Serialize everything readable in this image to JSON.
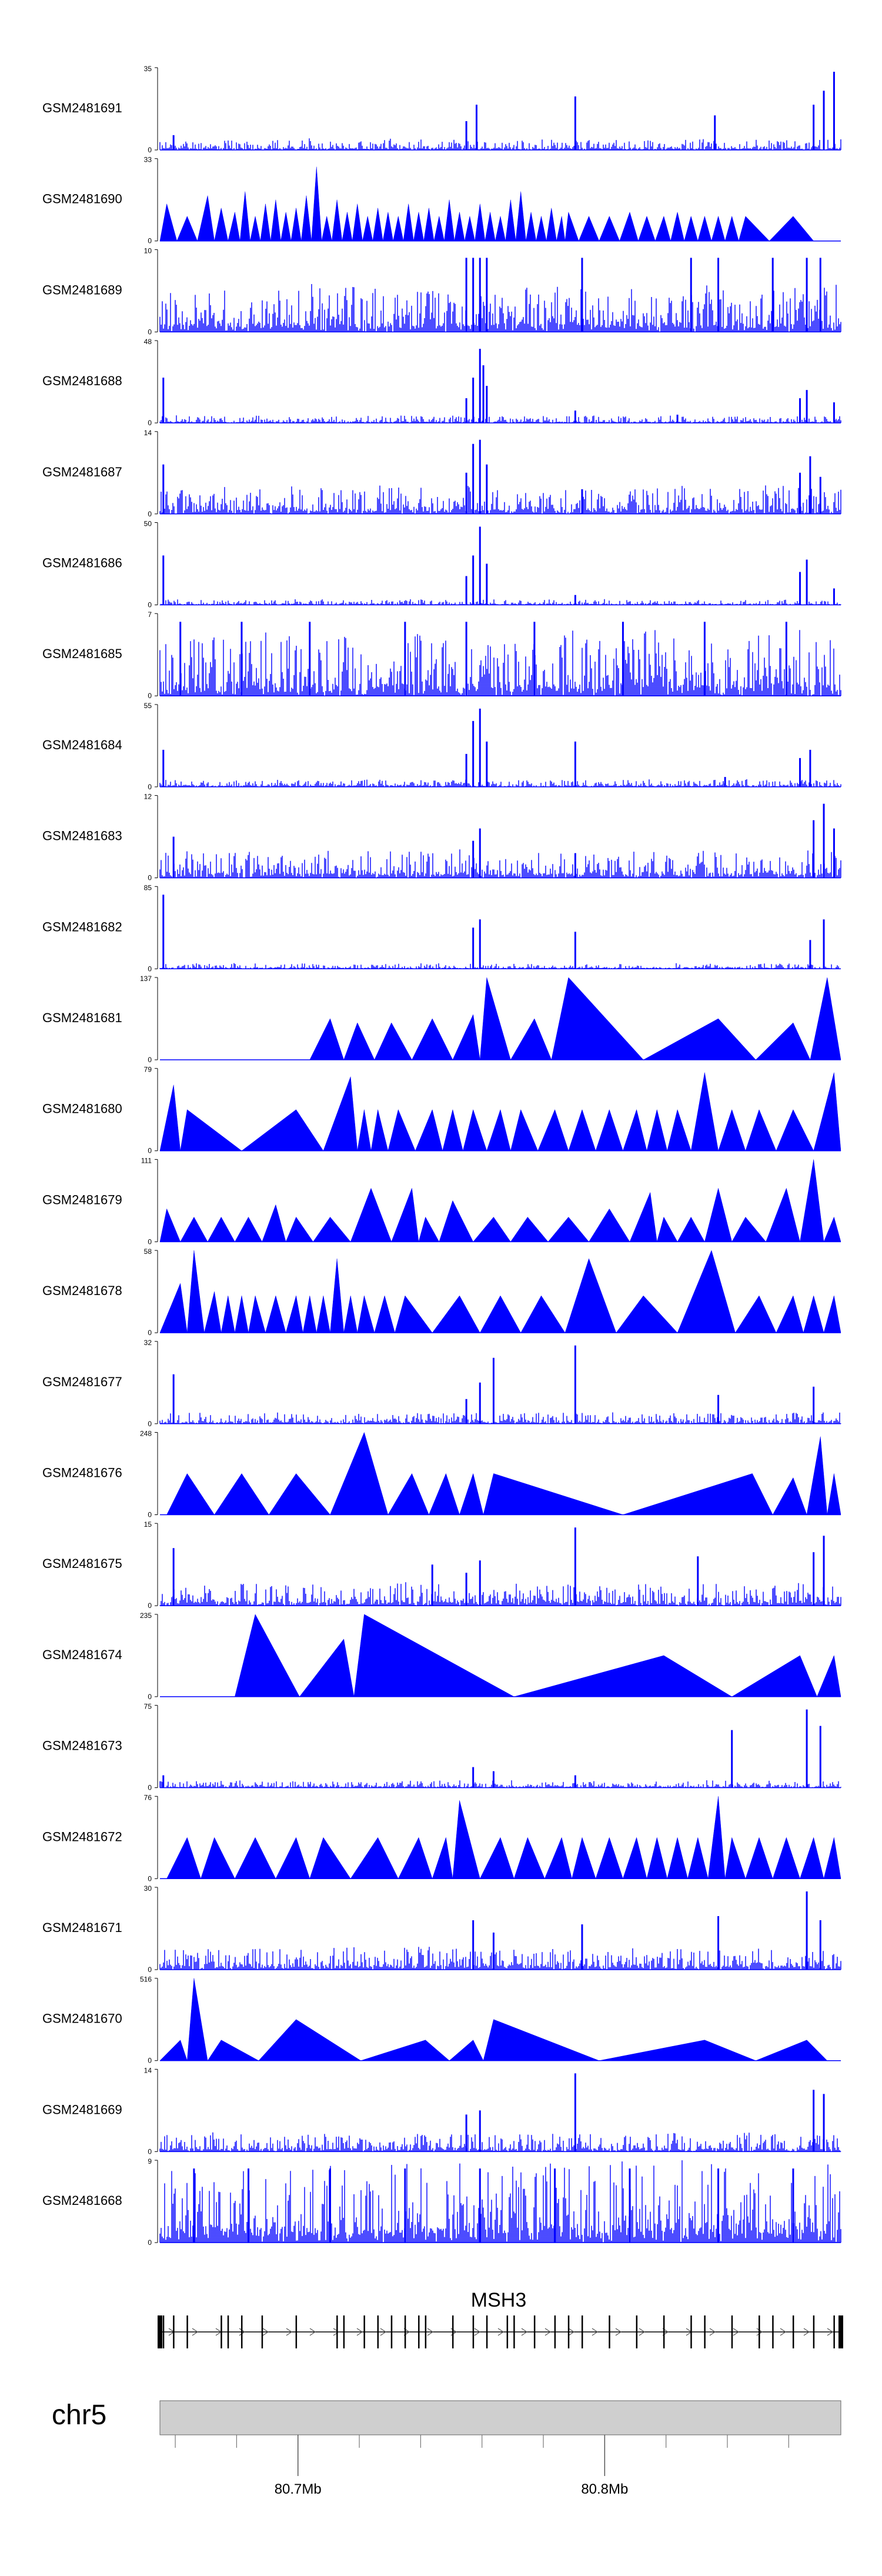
{
  "chart_data": {
    "type": "area",
    "title": "",
    "track_color": "#0000ff",
    "axis_color": "#000000",
    "tracks": [
      {
        "name": "GSM2481691",
        "ymax": "35",
        "ymin": "0",
        "style": "noise",
        "base": 0.06,
        "spikes": [
          [
            0.02,
            0.18
          ],
          [
            0.45,
            0.35
          ],
          [
            0.465,
            0.55
          ],
          [
            0.61,
            0.65
          ],
          [
            0.815,
            0.42
          ],
          [
            0.96,
            0.55
          ],
          [
            0.975,
            0.72
          ],
          [
            0.99,
            0.95
          ]
        ],
        "seed": 11
      },
      {
        "name": "GSM2481690",
        "ymax": "33",
        "ymin": "0",
        "style": "tri",
        "peaks": [
          0.01,
          0.04,
          0.07,
          0.09,
          0.11,
          0.125,
          0.14,
          0.155,
          0.17,
          0.185,
          0.2,
          0.215,
          0.23,
          0.245,
          0.26,
          0.275,
          0.29,
          0.305,
          0.32,
          0.335,
          0.35,
          0.365,
          0.38,
          0.395,
          0.41,
          0.425,
          0.44,
          0.455,
          0.47,
          0.485,
          0.5,
          0.515,
          0.53,
          0.545,
          0.56,
          0.575,
          0.59,
          0.6,
          0.63,
          0.66,
          0.69,
          0.715,
          0.74,
          0.76,
          0.78,
          0.8,
          0.82,
          0.84,
          0.86,
          0.93
        ],
        "heights": [
          0.45,
          0.3,
          0.55,
          0.4,
          0.35,
          0.6,
          0.3,
          0.45,
          0.5,
          0.35,
          0.4,
          0.55,
          0.9,
          0.3,
          0.5,
          0.35,
          0.45,
          0.3,
          0.4,
          0.35,
          0.3,
          0.45,
          0.35,
          0.4,
          0.3,
          0.5,
          0.35,
          0.3,
          0.45,
          0.35,
          0.3,
          0.5,
          0.6,
          0.35,
          0.3,
          0.4,
          0.3,
          0.35,
          0.3,
          0.3,
          0.35,
          0.3,
          0.3,
          0.35,
          0.3,
          0.3,
          0.3,
          0.3,
          0.3,
          0.3
        ],
        "seed": 12
      },
      {
        "name": "GSM2481689",
        "ymax": "10",
        "ymin": "0",
        "style": "noise",
        "base": 0.25,
        "spikes": [
          0.45,
          0.46,
          0.47,
          0.48,
          0.62,
          0.78,
          0.82,
          0.9,
          0.95,
          0.97
        ],
        "seed": 13
      },
      {
        "name": "GSM2481688",
        "ymax": "48",
        "ymin": "0",
        "style": "noise",
        "base": 0.04,
        "spikes": [
          [
            0.005,
            0.55
          ],
          [
            0.45,
            0.3
          ],
          [
            0.46,
            0.55
          ],
          [
            0.47,
            0.9
          ],
          [
            0.475,
            0.7
          ],
          [
            0.48,
            0.45
          ],
          [
            0.61,
            0.15
          ],
          [
            0.76,
            0.1
          ],
          [
            0.94,
            0.3
          ],
          [
            0.95,
            0.4
          ],
          [
            0.99,
            0.25
          ]
        ],
        "seed": 14
      },
      {
        "name": "GSM2481687",
        "ymax": "14",
        "ymin": "0",
        "style": "noise",
        "base": 0.15,
        "spikes": [
          [
            0.005,
            0.6
          ],
          [
            0.45,
            0.5
          ],
          [
            0.46,
            0.85
          ],
          [
            0.47,
            0.9
          ],
          [
            0.48,
            0.6
          ],
          [
            0.62,
            0.3
          ],
          [
            0.94,
            0.5
          ],
          [
            0.955,
            0.7
          ],
          [
            0.97,
            0.45
          ]
        ],
        "seed": 15
      },
      {
        "name": "GSM2481686",
        "ymax": "50",
        "ymin": "0",
        "style": "noise",
        "base": 0.03,
        "spikes": [
          [
            0.005,
            0.6
          ],
          [
            0.45,
            0.35
          ],
          [
            0.46,
            0.6
          ],
          [
            0.47,
            0.95
          ],
          [
            0.48,
            0.5
          ],
          [
            0.61,
            0.12
          ],
          [
            0.94,
            0.4
          ],
          [
            0.95,
            0.55
          ],
          [
            0.99,
            0.2
          ]
        ],
        "seed": 16
      },
      {
        "name": "GSM2481685",
        "ymax": "7",
        "ymin": "0",
        "style": "noise",
        "base": 0.35,
        "spikes": [
          0.03,
          0.12,
          0.22,
          0.36,
          0.45,
          0.55,
          0.68,
          0.8,
          0.92
        ],
        "seed": 17
      },
      {
        "name": "GSM2481684",
        "ymax": "55",
        "ymin": "0",
        "style": "noise",
        "base": 0.04,
        "spikes": [
          [
            0.005,
            0.45
          ],
          [
            0.45,
            0.4
          ],
          [
            0.46,
            0.8
          ],
          [
            0.47,
            0.95
          ],
          [
            0.48,
            0.55
          ],
          [
            0.61,
            0.55
          ],
          [
            0.83,
            0.12
          ],
          [
            0.94,
            0.35
          ],
          [
            0.955,
            0.45
          ]
        ],
        "seed": 18
      },
      {
        "name": "GSM2481683",
        "ymax": "12",
        "ymin": "0",
        "style": "noise",
        "base": 0.15,
        "spikes": [
          [
            0.02,
            0.5
          ],
          [
            0.46,
            0.45
          ],
          [
            0.47,
            0.6
          ],
          [
            0.61,
            0.3
          ],
          [
            0.96,
            0.7
          ],
          [
            0.975,
            0.9
          ],
          [
            0.99,
            0.6
          ]
        ],
        "seed": 19
      },
      {
        "name": "GSM2481682",
        "ymax": "85",
        "ymin": "0",
        "style": "noise",
        "base": 0.03,
        "spikes": [
          [
            0.005,
            0.9
          ],
          [
            0.46,
            0.5
          ],
          [
            0.47,
            0.6
          ],
          [
            0.61,
            0.45
          ],
          [
            0.955,
            0.35
          ],
          [
            0.975,
            0.6
          ]
        ],
        "seed": 20
      },
      {
        "name": "GSM2481681",
        "ymax": "137",
        "ymin": "0",
        "style": "tri",
        "peaks": [
          0.25,
          0.29,
          0.34,
          0.4,
          0.46,
          0.48,
          0.55,
          0.6,
          0.82,
          0.93,
          0.98
        ],
        "heights": [
          0.5,
          0.45,
          0.45,
          0.5,
          0.55,
          1.0,
          0.5,
          1.0,
          0.5,
          0.45,
          1.0
        ],
        "seed": 21
      },
      {
        "name": "GSM2481680",
        "ymax": "79",
        "ymin": "0",
        "style": "tri",
        "peaks": [
          0.02,
          0.04,
          0.2,
          0.28,
          0.3,
          0.32,
          0.35,
          0.4,
          0.43,
          0.46,
          0.5,
          0.53,
          0.58,
          0.62,
          0.66,
          0.7,
          0.73,
          0.76,
          0.8,
          0.84,
          0.88,
          0.93,
          0.99
        ],
        "heights": [
          0.8,
          0.5,
          0.5,
          0.9,
          0.5,
          0.5,
          0.5,
          0.5,
          0.5,
          0.5,
          0.5,
          0.5,
          0.5,
          0.5,
          0.5,
          0.5,
          0.5,
          0.5,
          0.95,
          0.5,
          0.5,
          0.5,
          0.95
        ],
        "seed": 22
      },
      {
        "name": "GSM2481679",
        "ymax": "111",
        "ymin": "0",
        "style": "tri",
        "peaks": [
          0.01,
          0.05,
          0.09,
          0.13,
          0.17,
          0.2,
          0.25,
          0.31,
          0.37,
          0.39,
          0.43,
          0.49,
          0.54,
          0.6,
          0.66,
          0.72,
          0.74,
          0.78,
          0.82,
          0.86,
          0.92,
          0.96,
          0.99
        ],
        "heights": [
          0.4,
          0.3,
          0.3,
          0.3,
          0.45,
          0.3,
          0.3,
          0.65,
          0.65,
          0.3,
          0.5,
          0.3,
          0.3,
          0.3,
          0.4,
          0.6,
          0.3,
          0.3,
          0.65,
          0.3,
          0.65,
          1.0,
          0.3
        ],
        "seed": 23
      },
      {
        "name": "GSM2481678",
        "ymax": "58",
        "ymin": "0",
        "style": "tri",
        "peaks": [
          0.03,
          0.05,
          0.08,
          0.1,
          0.12,
          0.14,
          0.17,
          0.2,
          0.22,
          0.24,
          0.26,
          0.28,
          0.3,
          0.33,
          0.36,
          0.44,
          0.5,
          0.56,
          0.63,
          0.71,
          0.81,
          0.88,
          0.93,
          0.96,
          0.99
        ],
        "heights": [
          0.6,
          1.0,
          0.5,
          0.45,
          0.45,
          0.45,
          0.45,
          0.45,
          0.45,
          0.45,
          0.9,
          0.45,
          0.45,
          0.45,
          0.45,
          0.45,
          0.45,
          0.45,
          0.9,
          0.45,
          1.0,
          0.45,
          0.45,
          0.45,
          0.45
        ],
        "seed": 24
      },
      {
        "name": "GSM2481677",
        "ymax": "32",
        "ymin": "0",
        "style": "noise",
        "base": 0.06,
        "spikes": [
          [
            0.02,
            0.6
          ],
          [
            0.45,
            0.3
          ],
          [
            0.47,
            0.5
          ],
          [
            0.49,
            0.8
          ],
          [
            0.61,
            0.95
          ],
          [
            0.82,
            0.35
          ],
          [
            0.96,
            0.45
          ]
        ],
        "seed": 25
      },
      {
        "name": "GSM2481676",
        "ymax": "248",
        "ymin": "0",
        "style": "tri",
        "peaks": [
          0.04,
          0.12,
          0.2,
          0.3,
          0.37,
          0.42,
          0.46,
          0.49,
          0.87,
          0.93,
          0.97,
          0.99
        ],
        "heights": [
          0.5,
          0.5,
          0.5,
          1.0,
          0.5,
          0.5,
          0.5,
          0.5,
          0.5,
          0.45,
          0.95,
          0.5
        ],
        "seed": 26
      },
      {
        "name": "GSM2481675",
        "ymax": "15",
        "ymin": "0",
        "style": "noise",
        "base": 0.12,
        "spikes": [
          [
            0.02,
            0.7
          ],
          [
            0.4,
            0.5
          ],
          [
            0.45,
            0.4
          ],
          [
            0.47,
            0.55
          ],
          [
            0.61,
            0.95
          ],
          [
            0.79,
            0.6
          ],
          [
            0.96,
            0.65
          ],
          [
            0.975,
            0.85
          ]
        ],
        "seed": 27
      },
      {
        "name": "GSM2481674",
        "ymax": "235",
        "ymin": "0",
        "style": "tri",
        "peaks": [
          0.14,
          0.27,
          0.3,
          0.74,
          0.94,
          0.99
        ],
        "heights": [
          1.0,
          0.7,
          1.0,
          0.5,
          0.5,
          0.5
        ],
        "seed": 28
      },
      {
        "name": "GSM2481673",
        "ymax": "75",
        "ymin": "0",
        "style": "noise",
        "base": 0.04,
        "spikes": [
          [
            0.005,
            0.15
          ],
          [
            0.46,
            0.25
          ],
          [
            0.49,
            0.2
          ],
          [
            0.61,
            0.15
          ],
          [
            0.84,
            0.7
          ],
          [
            0.95,
            0.95
          ],
          [
            0.97,
            0.75
          ]
        ],
        "seed": 29
      },
      {
        "name": "GSM2481672",
        "ymax": "76",
        "ymin": "0",
        "style": "tri",
        "peaks": [
          0.04,
          0.08,
          0.14,
          0.2,
          0.24,
          0.32,
          0.38,
          0.42,
          0.44,
          0.5,
          0.54,
          0.59,
          0.62,
          0.66,
          0.7,
          0.73,
          0.76,
          0.79,
          0.82,
          0.84,
          0.88,
          0.92,
          0.96,
          0.99
        ],
        "heights": [
          0.5,
          0.5,
          0.5,
          0.5,
          0.5,
          0.5,
          0.5,
          0.5,
          0.95,
          0.5,
          0.5,
          0.5,
          0.5,
          0.5,
          0.5,
          0.5,
          0.5,
          0.5,
          1.0,
          0.5,
          0.5,
          0.5,
          0.5,
          0.5
        ],
        "seed": 30
      },
      {
        "name": "GSM2481671",
        "ymax": "30",
        "ymin": "0",
        "style": "noise",
        "base": 0.12,
        "spikes": [
          [
            0.46,
            0.6
          ],
          [
            0.49,
            0.45
          ],
          [
            0.62,
            0.55
          ],
          [
            0.82,
            0.65
          ],
          [
            0.95,
            0.95
          ],
          [
            0.97,
            0.6
          ]
        ],
        "seed": 31
      },
      {
        "name": "GSM2481670",
        "ymax": "516",
        "ymin": "0",
        "style": "tri",
        "peaks": [
          0.03,
          0.05,
          0.09,
          0.2,
          0.39,
          0.46,
          0.49,
          0.8,
          0.95
        ],
        "heights": [
          0.25,
          1.0,
          0.25,
          0.5,
          0.25,
          0.25,
          0.5,
          0.25,
          0.25
        ],
        "seed": 32
      },
      {
        "name": "GSM2481669",
        "ymax": "14",
        "ymin": "0",
        "style": "noise",
        "base": 0.1,
        "spikes": [
          [
            0.45,
            0.45
          ],
          [
            0.47,
            0.5
          ],
          [
            0.61,
            0.95
          ],
          [
            0.96,
            0.75
          ],
          [
            0.975,
            0.7
          ]
        ],
        "seed": 33
      },
      {
        "name": "GSM2481668",
        "ymax": "9",
        "ymin": "0",
        "style": "noise",
        "base": 0.45,
        "spikes": [
          0.05,
          0.13,
          0.25,
          0.36,
          0.47,
          0.58,
          0.69,
          0.82,
          0.93
        ],
        "seed": 34
      }
    ],
    "gene": {
      "name": "MSH3",
      "exons": [
        0.0,
        0.005,
        0.02,
        0.04,
        0.09,
        0.1,
        0.12,
        0.15,
        0.2,
        0.26,
        0.27,
        0.3,
        0.32,
        0.34,
        0.36,
        0.38,
        0.39,
        0.43,
        0.46,
        0.48,
        0.51,
        0.52,
        0.55,
        0.58,
        0.6,
        0.62,
        0.66,
        0.7,
        0.74,
        0.78,
        0.8,
        0.84,
        0.88,
        0.9,
        0.93,
        0.96,
        0.99,
        1.0
      ],
      "exons_thick": [
        0.0,
        1.0
      ]
    },
    "chromosome": "chr5",
    "axis": {
      "start": 80.655,
      "end": 80.877,
      "major_ticks": [
        80.7,
        80.8
      ],
      "major_labels": [
        "80.7Mb",
        "80.8Mb"
      ],
      "minor_ticks": [
        80.66,
        80.68,
        80.72,
        80.74,
        80.76,
        80.78,
        80.82,
        80.84,
        80.86
      ]
    }
  }
}
